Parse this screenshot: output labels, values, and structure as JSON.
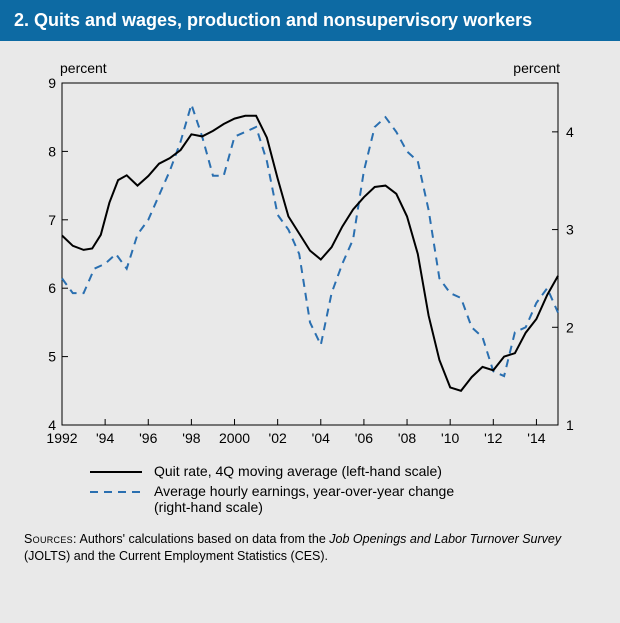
{
  "title": "2.  Quits and wages, production and nonsupervisory workers",
  "ylabel_left": "percent",
  "ylabel_right": "percent",
  "chart": {
    "type": "line-dual-axis",
    "x": {
      "min": 1992,
      "max": 2015,
      "ticks": [
        1992,
        1994,
        1996,
        1998,
        2000,
        2002,
        2004,
        2006,
        2008,
        2010,
        2012,
        2014
      ],
      "tick_labels": [
        "1992",
        "'94",
        "'96",
        "'98",
        "2000",
        "'02",
        "'04",
        "'06",
        "'08",
        "'10",
        "'12",
        "'14"
      ]
    },
    "y_left": {
      "min": 4,
      "max": 9,
      "ticks": [
        4,
        5,
        6,
        7,
        8,
        9
      ]
    },
    "y_right": {
      "min": 1,
      "max": 4.5,
      "ticks": [
        1,
        2,
        3,
        4
      ]
    },
    "background": "#e9e9e9",
    "border_color": "#000000",
    "quit_rate": {
      "color": "#000000",
      "width": 2,
      "dash": "none",
      "data": [
        [
          1992.0,
          6.77
        ],
        [
          1992.5,
          6.62
        ],
        [
          1993.0,
          6.56
        ],
        [
          1993.4,
          6.58
        ],
        [
          1993.8,
          6.78
        ],
        [
          1994.2,
          7.25
        ],
        [
          1994.6,
          7.58
        ],
        [
          1995.0,
          7.65
        ],
        [
          1995.5,
          7.5
        ],
        [
          1996.0,
          7.64
        ],
        [
          1996.5,
          7.82
        ],
        [
          1997.0,
          7.9
        ],
        [
          1997.5,
          8.02
        ],
        [
          1998.0,
          8.25
        ],
        [
          1998.5,
          8.22
        ],
        [
          1999.0,
          8.3
        ],
        [
          1999.5,
          8.4
        ],
        [
          2000.0,
          8.48
        ],
        [
          2000.5,
          8.52
        ],
        [
          2001.0,
          8.52
        ],
        [
          2001.5,
          8.2
        ],
        [
          2002.0,
          7.6
        ],
        [
          2002.5,
          7.05
        ],
        [
          2003.0,
          6.8
        ],
        [
          2003.5,
          6.55
        ],
        [
          2004.0,
          6.42
        ],
        [
          2004.5,
          6.6
        ],
        [
          2005.0,
          6.9
        ],
        [
          2005.5,
          7.15
        ],
        [
          2006.0,
          7.33
        ],
        [
          2006.5,
          7.48
        ],
        [
          2007.0,
          7.5
        ],
        [
          2007.5,
          7.38
        ],
        [
          2008.0,
          7.05
        ],
        [
          2008.5,
          6.5
        ],
        [
          2009.0,
          5.6
        ],
        [
          2009.5,
          4.95
        ],
        [
          2010.0,
          4.55
        ],
        [
          2010.5,
          4.5
        ],
        [
          2011.0,
          4.7
        ],
        [
          2011.5,
          4.85
        ],
        [
          2012.0,
          4.8
        ],
        [
          2012.5,
          5.0
        ],
        [
          2013.0,
          5.05
        ],
        [
          2013.5,
          5.35
        ],
        [
          2014.0,
          5.55
        ],
        [
          2014.5,
          5.9
        ],
        [
          2015.0,
          6.18
        ]
      ]
    },
    "avg_hourly_earnings": {
      "color": "#2a6fb0",
      "width": 2,
      "dash": "8,6",
      "data": [
        [
          1992.0,
          2.5
        ],
        [
          1992.5,
          2.35
        ],
        [
          1993.0,
          2.35
        ],
        [
          1993.5,
          2.6
        ],
        [
          1994.0,
          2.65
        ],
        [
          1994.5,
          2.75
        ],
        [
          1995.0,
          2.6
        ],
        [
          1995.5,
          2.95
        ],
        [
          1996.0,
          3.1
        ],
        [
          1996.5,
          3.35
        ],
        [
          1997.0,
          3.6
        ],
        [
          1997.5,
          3.9
        ],
        [
          1998.0,
          4.28
        ],
        [
          1998.5,
          3.95
        ],
        [
          1999.0,
          3.55
        ],
        [
          1999.5,
          3.55
        ],
        [
          2000.0,
          3.95
        ],
        [
          2000.5,
          4.0
        ],
        [
          2001.0,
          4.05
        ],
        [
          2001.5,
          3.7
        ],
        [
          2002.0,
          3.15
        ],
        [
          2002.5,
          3.0
        ],
        [
          2003.0,
          2.75
        ],
        [
          2003.5,
          2.05
        ],
        [
          2004.0,
          1.82
        ],
        [
          2004.5,
          2.35
        ],
        [
          2005.0,
          2.65
        ],
        [
          2005.5,
          2.9
        ],
        [
          2006.0,
          3.6
        ],
        [
          2006.5,
          4.05
        ],
        [
          2007.0,
          4.15
        ],
        [
          2007.5,
          4.0
        ],
        [
          2008.0,
          3.8
        ],
        [
          2008.5,
          3.7
        ],
        [
          2009.0,
          3.2
        ],
        [
          2009.5,
          2.5
        ],
        [
          2010.0,
          2.35
        ],
        [
          2010.5,
          2.3
        ],
        [
          2011.0,
          2.0
        ],
        [
          2011.5,
          1.9
        ],
        [
          2012.0,
          1.55
        ],
        [
          2012.5,
          1.5
        ],
        [
          2013.0,
          1.95
        ],
        [
          2013.5,
          2.0
        ],
        [
          2014.0,
          2.25
        ],
        [
          2014.5,
          2.4
        ],
        [
          2015.0,
          2.15
        ]
      ]
    }
  },
  "legend": {
    "line1": "Quit rate, 4Q moving average (left-hand scale)",
    "line2a": "Average hourly earnings, year-over-year change",
    "line2b": "(right-hand scale)"
  },
  "sources_label": "Sources:",
  "sources_text_a": " Authors' calculations based on data from the ",
  "sources_text_b": "Job Openings and Labor Turnover Survey",
  "sources_text_c": " (JOLTS) and the Current Employment Statistics (CES)."
}
